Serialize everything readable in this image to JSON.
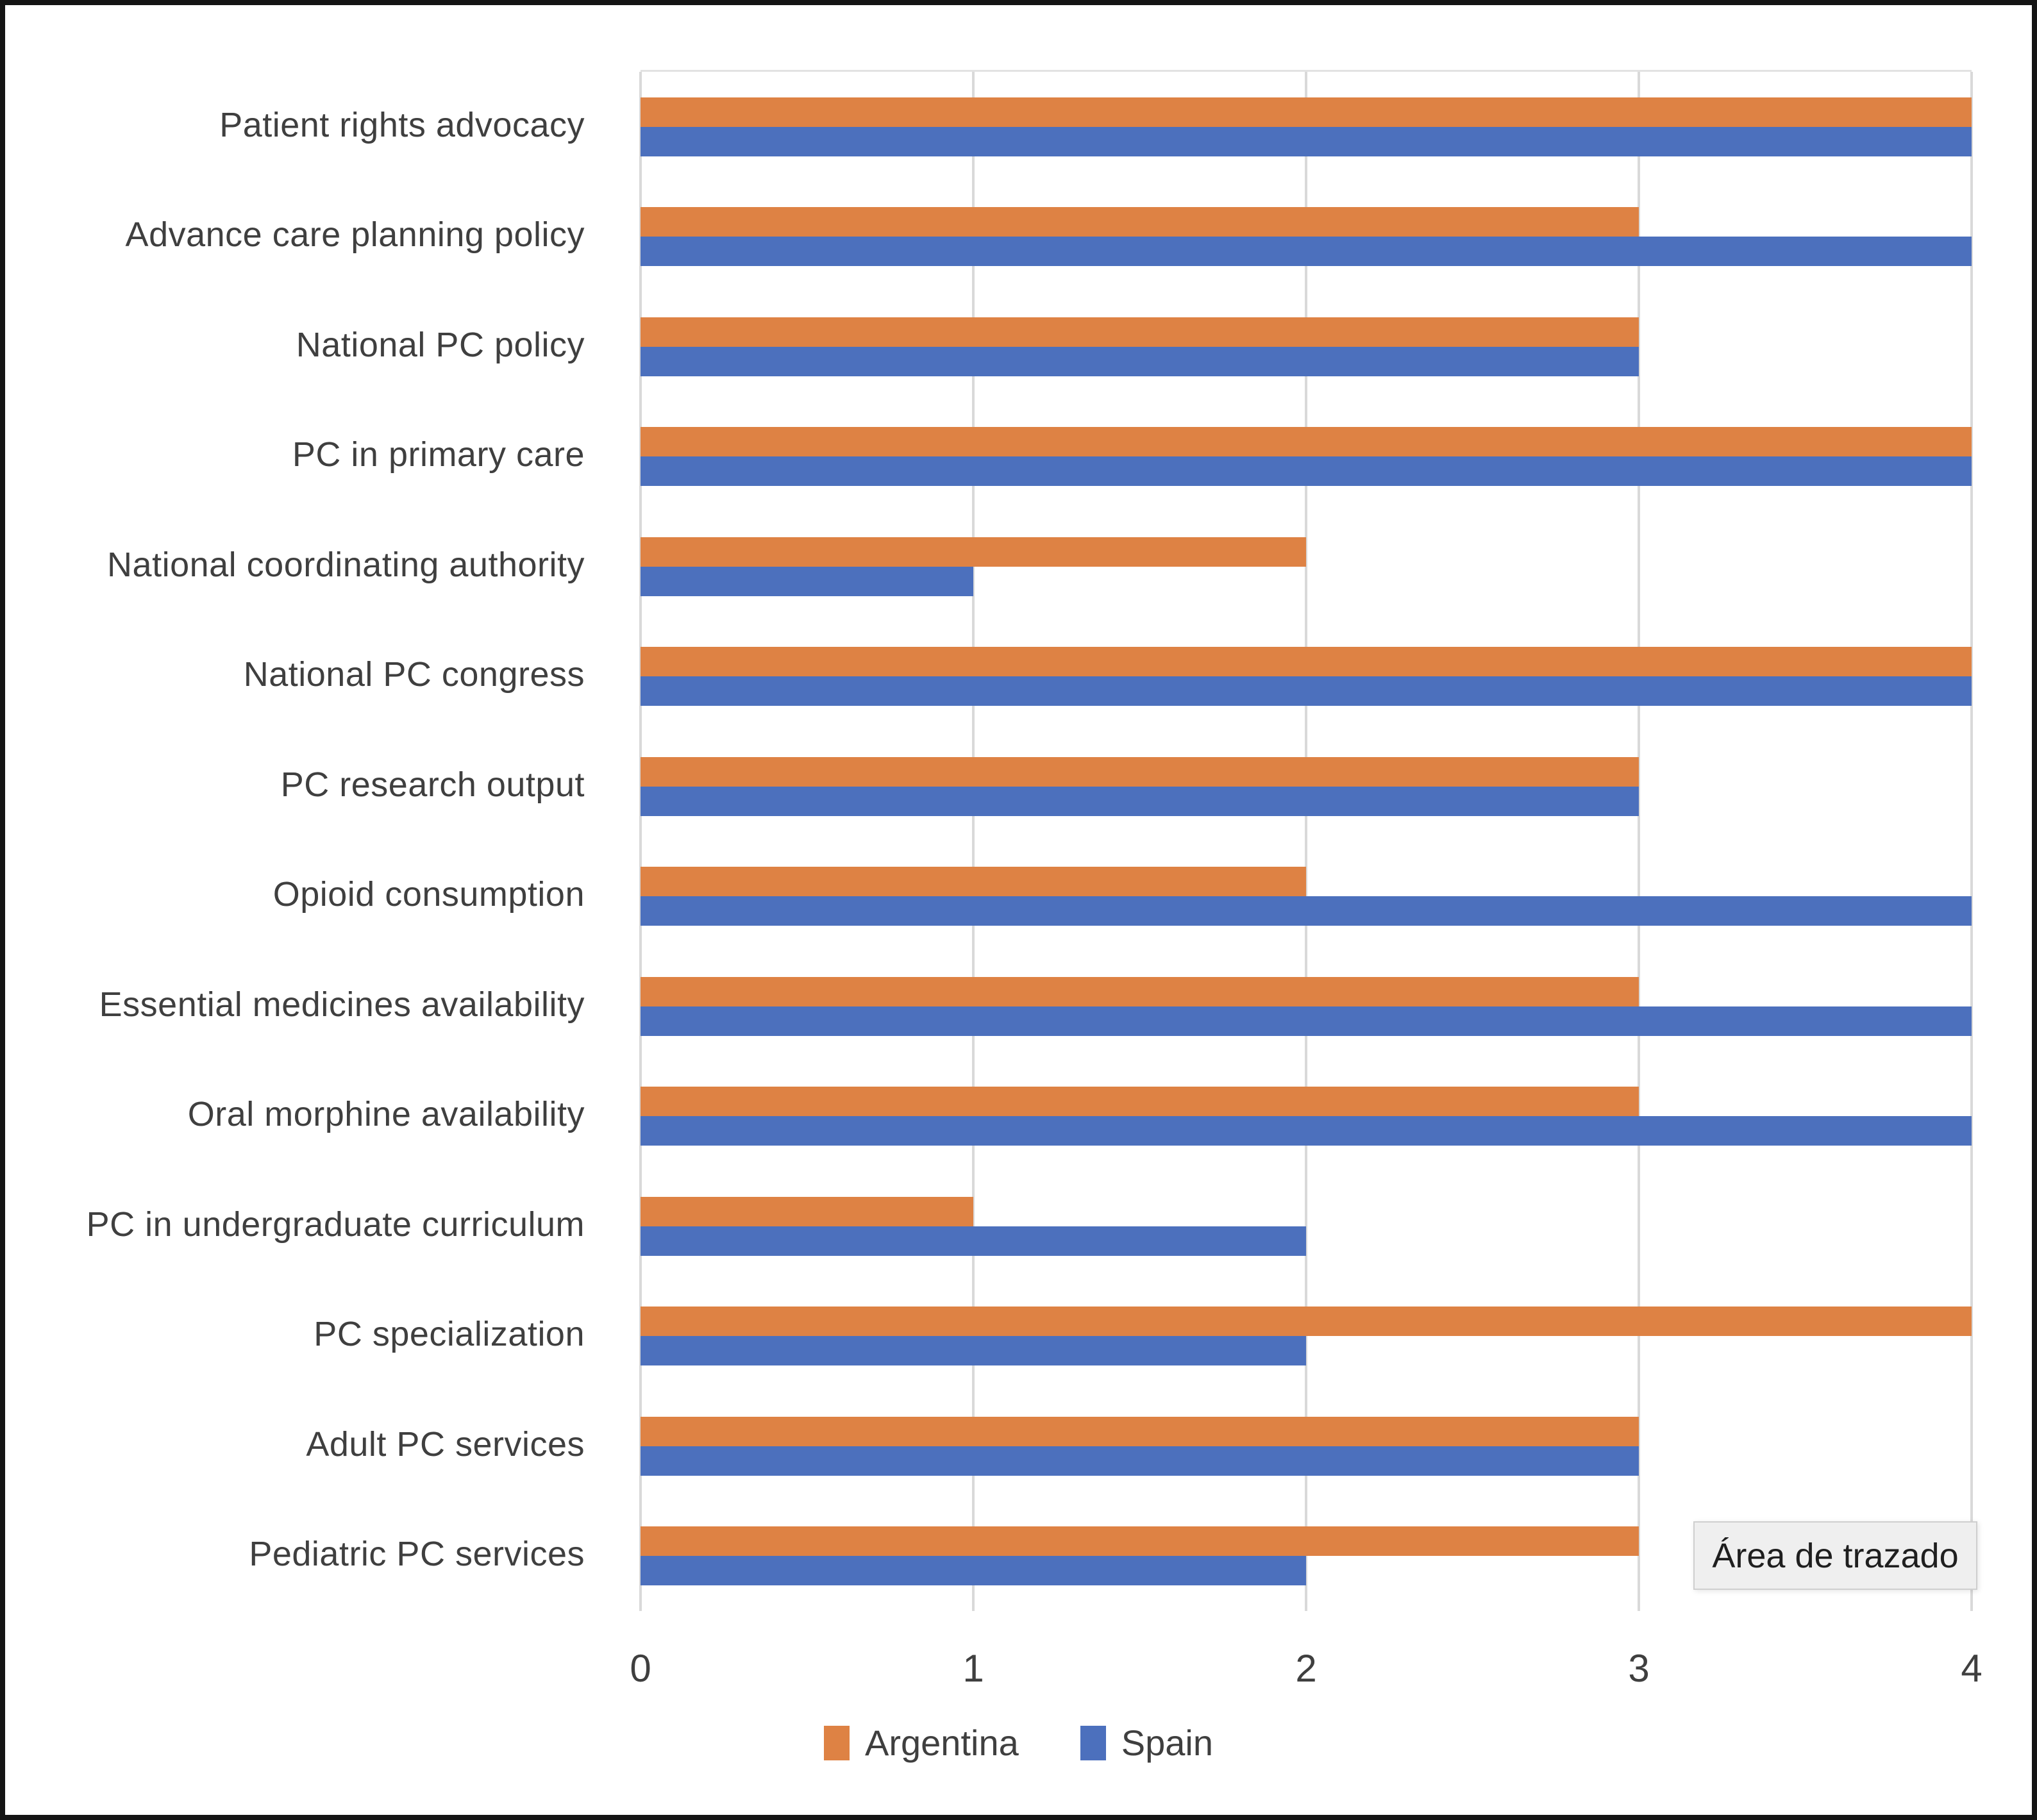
{
  "tooltip": {
    "label": "Área de trazado"
  },
  "colors": {
    "argentina": "#DE8244",
    "spain": "#4C70BD",
    "gridline": "#D9D9D9",
    "axis_text": "#3F3F3F",
    "tooltip_bg": "#EFEFEF",
    "tooltip_border": "#CFCFCF",
    "figure_border": "#141414"
  },
  "chart_data": {
    "type": "bar",
    "orientation": "horizontal",
    "title": "",
    "xlabel": "",
    "ylabel": "",
    "xlim": [
      0,
      4
    ],
    "x_ticks": [
      "0",
      "1",
      "2",
      "3",
      "4"
    ],
    "grid": "vertical",
    "legend_position": "bottom",
    "categories": [
      "Patient rights advocacy",
      "Advance care planning policy",
      "National PC policy",
      "PC in primary care",
      "National coordinating authority",
      "National PC congress",
      "PC research output",
      "Opioid consumption",
      "Essential medicines availability",
      "Oral morphine availability",
      "PC in undergraduate curriculum",
      "PC specialization",
      "Adult PC services",
      "Pediatric PC services"
    ],
    "series": [
      {
        "name": "Argentina",
        "color": "#DE8244",
        "values": [
          4,
          3,
          3,
          4,
          2,
          4,
          3,
          2,
          3,
          3,
          1,
          4,
          3,
          3
        ]
      },
      {
        "name": "Spain",
        "color": "#4C70BD",
        "values": [
          4,
          4,
          3,
          4,
          1,
          4,
          3,
          4,
          4,
          4,
          2,
          2,
          3,
          2
        ]
      }
    ]
  }
}
